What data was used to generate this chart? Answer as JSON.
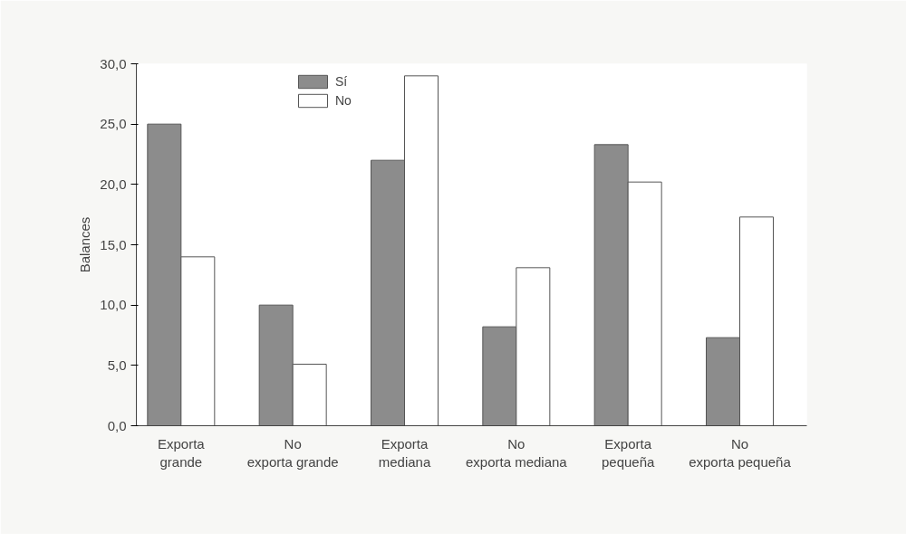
{
  "chart_data": {
    "type": "bar",
    "ylabel": "Balances",
    "categories": [
      "Exporta grande",
      "No exporta grande",
      "Exporta mediana",
      "No exporta mediana",
      "Exporta pequeña",
      "No exporta pequeña"
    ],
    "series": [
      {
        "name": "Sí",
        "color": "#8c8c8c",
        "values": [
          25.0,
          10.0,
          22.0,
          8.2,
          23.3,
          7.3
        ]
      },
      {
        "name": "No",
        "color": "#ffffff",
        "values": [
          14.0,
          5.1,
          29.0,
          13.1,
          20.2,
          17.3
        ]
      }
    ],
    "ylim": [
      0,
      30
    ],
    "yticks": [
      {
        "value": 0,
        "label": "0,0"
      },
      {
        "value": 5,
        "label": "5,0"
      },
      {
        "value": 10,
        "label": "10,0"
      },
      {
        "value": 15,
        "label": "15,0"
      },
      {
        "value": 20,
        "label": "20,0"
      },
      {
        "value": 25,
        "label": "25,0"
      },
      {
        "value": 30,
        "label": "30,0"
      }
    ],
    "grid": false,
    "legend": "top left"
  }
}
